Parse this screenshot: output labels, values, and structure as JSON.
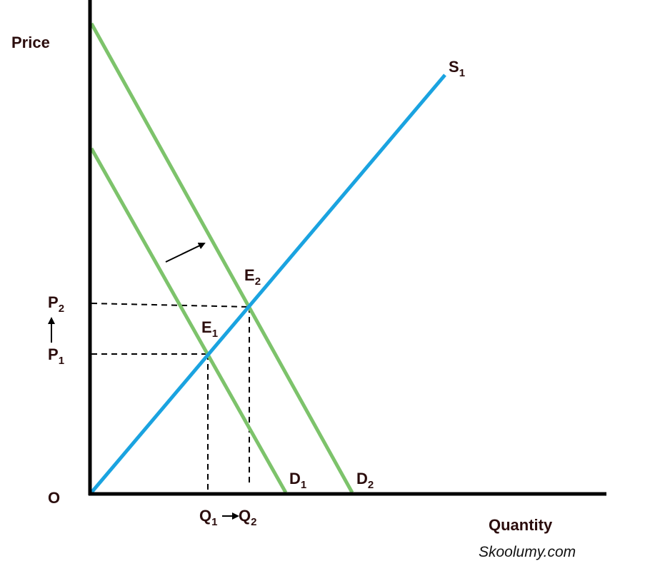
{
  "axes": {
    "y_label": "Price",
    "x_label": "Quantity",
    "origin": "O"
  },
  "curves": {
    "supply": {
      "main": "S",
      "sub": "1"
    },
    "demand_1": {
      "main": "D",
      "sub": "1"
    },
    "demand_2": {
      "main": "D",
      "sub": "2"
    }
  },
  "points": {
    "equilibrium_1": {
      "main": "E",
      "sub": "1"
    },
    "equilibrium_2": {
      "main": "E",
      "sub": "2"
    }
  },
  "prices": {
    "price_1": {
      "main": "P",
      "sub": "1"
    },
    "price_2": {
      "main": "P",
      "sub": "2"
    }
  },
  "quantities": {
    "quantity_1": {
      "main": "Q",
      "sub": "1"
    },
    "quantity_2": {
      "main": "Q",
      "sub": "2"
    }
  },
  "watermark": "Skoolumy.com"
}
